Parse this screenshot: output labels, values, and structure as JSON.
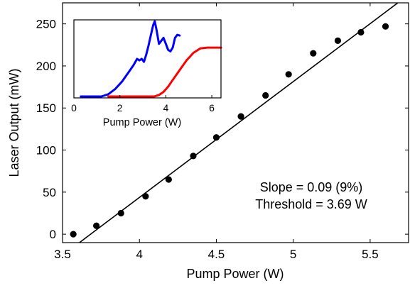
{
  "chart_data": [
    {
      "type": "scatter",
      "xlabel": "Pump Power (W)",
      "ylabel": "Laser Output (mW)",
      "xlim": [
        3.5,
        5.75
      ],
      "ylim": [
        -10,
        275
      ],
      "xticks": [
        3.5,
        4,
        4.5,
        5,
        5.5
      ],
      "xtick_labels": [
        "3.5",
        "4",
        "4.5",
        "5",
        "5.5"
      ],
      "yticks": [
        0,
        50,
        100,
        150,
        200,
        250
      ],
      "ytick_labels": [
        "0",
        "50",
        "100",
        "150",
        "200",
        "250"
      ],
      "grid": false,
      "series": [
        {
          "kind": "points",
          "color": "#000000",
          "x": [
            3.57,
            3.72,
            3.88,
            4.04,
            4.19,
            4.35,
            4.5,
            4.66,
            4.82,
            4.97,
            5.13,
            5.29,
            5.44,
            5.6
          ],
          "y": [
            0,
            10,
            25,
            45,
            65,
            93,
            115,
            140,
            165,
            190,
            215,
            230,
            240,
            247
          ]
        },
        {
          "kind": "fit-line",
          "color": "#000000",
          "x": [
            3.61,
            5.68
          ],
          "y": [
            -10,
            275
          ]
        }
      ],
      "annotations": [
        "Slope = 0.09 (9%)",
        "Threshold = 3.69 W"
      ]
    },
    {
      "type": "line",
      "inset": true,
      "xlabel": "Pump Power (W)",
      "ylabel": "",
      "xlim": [
        0,
        6.4
      ],
      "ylim": [
        0,
        1
      ],
      "xticks": [
        0,
        2,
        4,
        6
      ],
      "xtick_labels": [
        "0",
        "2",
        "4",
        "6"
      ],
      "grid": false,
      "series": [
        {
          "color": "#0000ff",
          "x": [
            0.3,
            0.8,
            1.2,
            1.5,
            1.8,
            2.1,
            2.4,
            2.6,
            2.75,
            2.85,
            2.95,
            3.05,
            3.15,
            3.25,
            3.35,
            3.45,
            3.52,
            3.6,
            3.7,
            3.8,
            3.9,
            4.0,
            4.1,
            4.2,
            4.3,
            4.4,
            4.5,
            4.6
          ],
          "y": [
            0,
            0,
            0,
            0.03,
            0.1,
            0.2,
            0.33,
            0.42,
            0.5,
            0.48,
            0.5,
            0.46,
            0.56,
            0.68,
            0.82,
            0.95,
            1.0,
            0.88,
            0.7,
            0.74,
            0.78,
            0.7,
            0.62,
            0.6,
            0.65,
            0.78,
            0.82,
            0.81
          ]
        },
        {
          "color": "#ff0000",
          "x": [
            1.5,
            3.5,
            3.7,
            3.9,
            4.1,
            4.3,
            4.6,
            4.9,
            5.2,
            5.5,
            5.8,
            6.1,
            6.4
          ],
          "y": [
            0,
            0,
            0.02,
            0.06,
            0.13,
            0.22,
            0.35,
            0.48,
            0.58,
            0.64,
            0.65,
            0.65,
            0.65
          ]
        }
      ]
    }
  ]
}
